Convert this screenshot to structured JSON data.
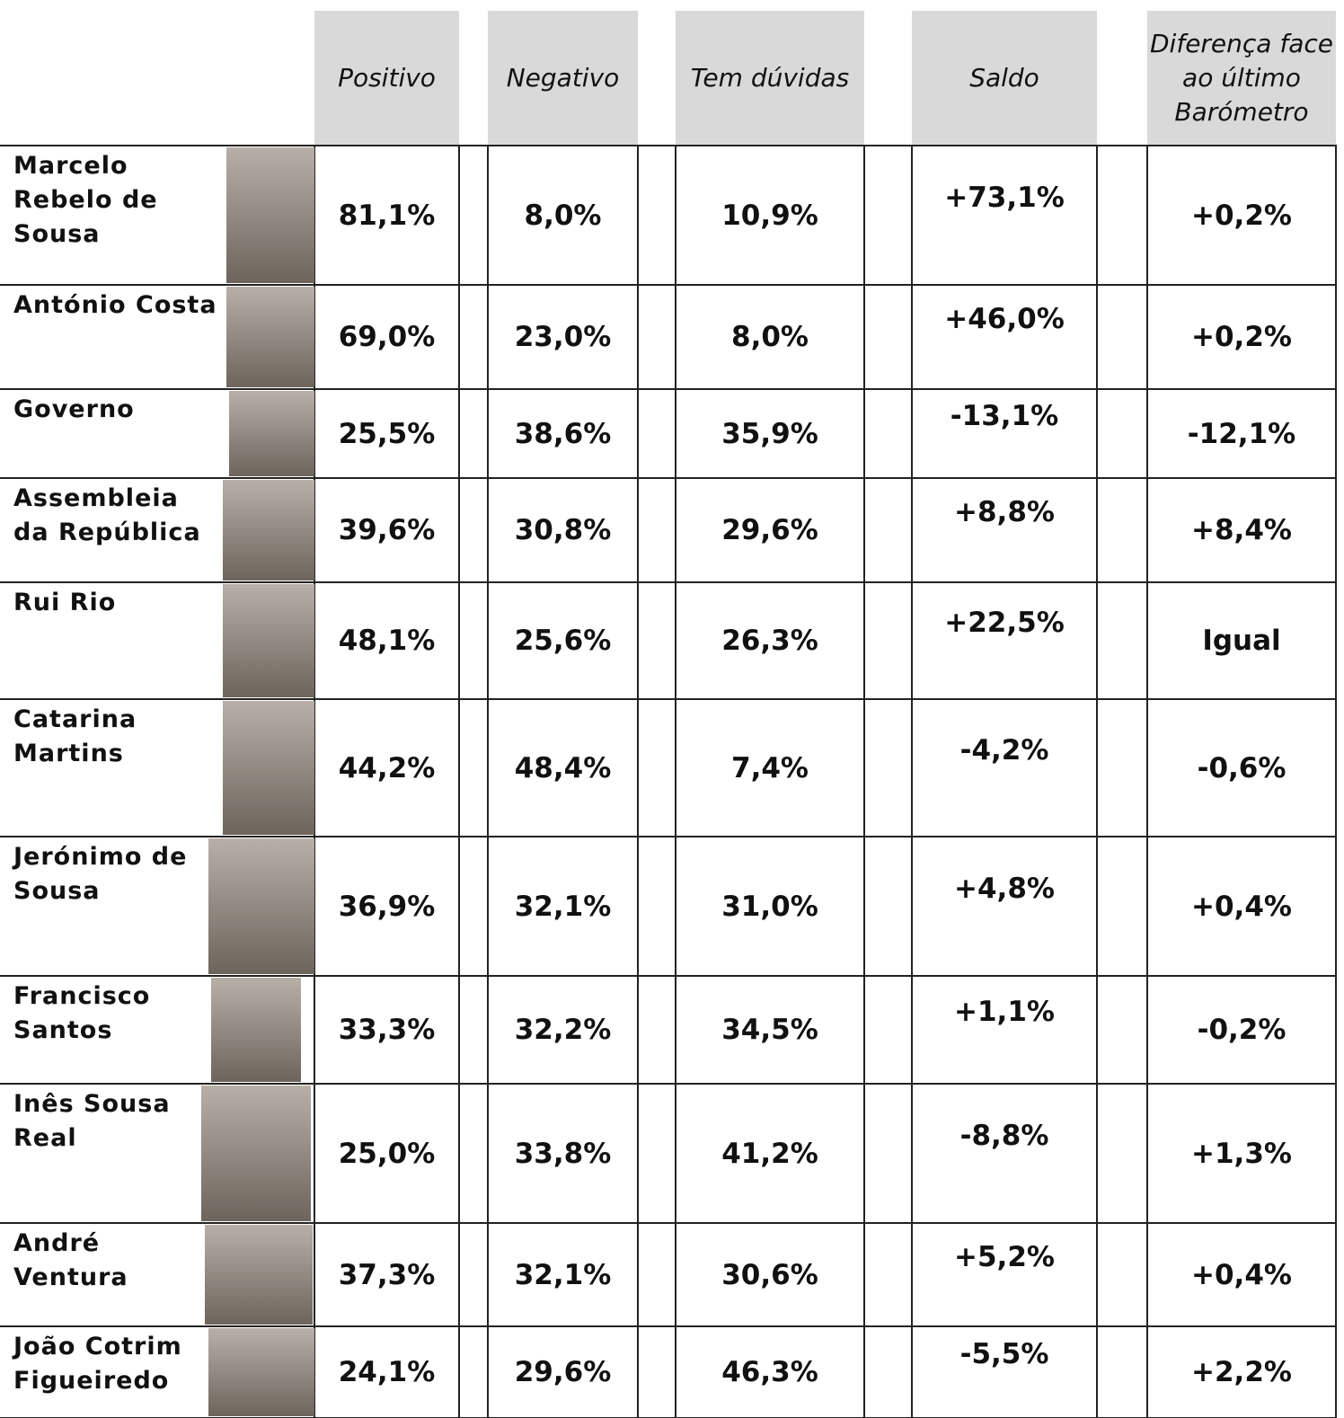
{
  "table": {
    "headers": [
      "Positivo",
      "Negativo",
      "Tem dúvidas",
      "Saldo",
      "Diferença face ao último Barómetro"
    ],
    "rows": [
      [
        "Marcelo Rebelo de Sousa",
        "81,1%",
        "8,0%",
        "10,9%",
        "+73,1%",
        "+0,2%"
      ],
      [
        "António Costa",
        "69,0%",
        "23,0%",
        "8,0%",
        "+46,0%",
        "+0,2%"
      ],
      [
        "Governo",
        "25,5%",
        "38,6%",
        "35,9%",
        "-13,1%",
        "-12,1%"
      ],
      [
        "Assembleia da República",
        "39,6%",
        "30,8%",
        "29,6%",
        "+8,8%",
        "+8,4%"
      ],
      [
        "Rui Rio",
        "48,1%",
        "25,6%",
        "26,3%",
        "+22,5%",
        "Igual"
      ],
      [
        "Catarina Martins",
        "44,2%",
        "48,4%",
        "7,4%",
        "-4,2%",
        "-0,6%"
      ],
      [
        "Jerónimo de Sousa",
        "36,9%",
        "32,1%",
        "31,0%",
        "+4,8%",
        "+0,4%"
      ],
      [
        "Francisco Santos",
        "33,3%",
        "32,2%",
        "34,5%",
        "+1,1%",
        "-0,2%"
      ],
      [
        "Inês Sousa Real",
        "25,0%",
        "33,8%",
        "41,2%",
        "-8,8%",
        "+1,3%"
      ],
      [
        "André Ventura",
        "37,3%",
        "32,1%",
        "30,6%",
        "+5,2%",
        "+0,4%"
      ],
      [
        "João Cotrim Figueiredo",
        "24,1%",
        "29,6%",
        "46,3%",
        "-5,5%",
        "+2,2%"
      ]
    ]
  }
}
